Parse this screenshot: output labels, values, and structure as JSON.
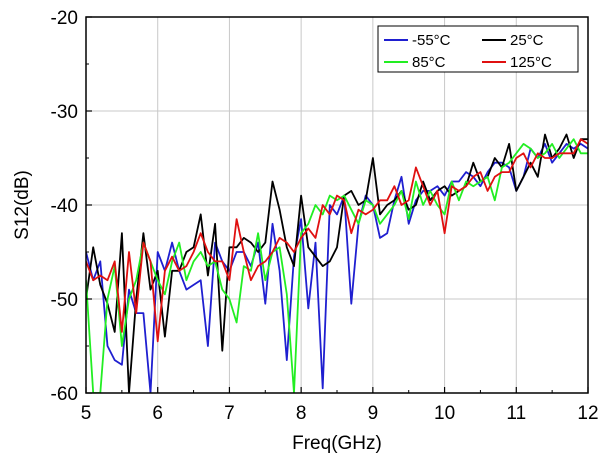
{
  "chart_data": {
    "type": "line",
    "title": "",
    "xlabel": "Freq(GHz)",
    "ylabel": "S12(dB)",
    "xlim": [
      5,
      12
    ],
    "ylim": [
      -60,
      -20
    ],
    "xticks": [
      "5",
      "6",
      "7",
      "8",
      "9",
      "10",
      "11",
      "12"
    ],
    "yticks": [
      "-20",
      "-30",
      "-40",
      "-50",
      "-60"
    ],
    "grid": true,
    "legend_position": "top-right",
    "series": [
      {
        "name": "-55°C",
        "color": "#1f1fd0",
        "x": [
          5,
          5.1,
          5.2,
          5.3,
          5.4,
          5.5,
          5.6,
          5.7,
          5.8,
          5.9,
          6.0,
          6.1,
          6.2,
          6.3,
          6.4,
          6.5,
          6.6,
          6.7,
          6.8,
          6.9,
          7.0,
          7.1,
          7.2,
          7.3,
          7.4,
          7.5,
          7.6,
          7.7,
          7.8,
          7.9,
          8.0,
          8.1,
          8.2,
          8.3,
          8.4,
          8.5,
          8.6,
          8.7,
          8.8,
          8.9,
          9.0,
          9.1,
          9.2,
          9.3,
          9.4,
          9.5,
          9.6,
          9.7,
          9.8,
          9.9,
          10.0,
          10.1,
          10.2,
          10.3,
          10.4,
          10.5,
          10.6,
          10.7,
          10.8,
          10.9,
          11.0,
          11.1,
          11.2,
          11.3,
          11.4,
          11.5,
          11.6,
          11.7,
          11.8,
          11.9,
          12.0
        ],
        "y": [
          -45,
          -48,
          -46,
          -55,
          -56.5,
          -57,
          -49,
          -51.5,
          -51.5,
          -60,
          -45,
          -47,
          -44,
          -47,
          -49,
          -48.5,
          -48,
          -55,
          -44,
          -46,
          -47,
          -45,
          -45,
          -46.5,
          -44,
          -50.5,
          -42,
          -47,
          -56.5,
          -45.5,
          -41.5,
          -51,
          -44,
          -59.5,
          -40,
          -41,
          -39,
          -50.5,
          -42,
          -39,
          -40,
          -43.5,
          -43,
          -39.5,
          -37,
          -42,
          -39.5,
          -38.5,
          -38.5,
          -38,
          -39,
          -37.5,
          -37.5,
          -36.5,
          -37,
          -38,
          -36.5,
          -35.5,
          -35.5,
          -36,
          -38.5,
          -37,
          -34,
          -35,
          -33.5,
          -35.5,
          -34.5,
          -33.5,
          -34,
          -33.5,
          -34
        ]
      },
      {
        "name": "25°C",
        "color": "#000000",
        "x": [
          5,
          5.1,
          5.2,
          5.3,
          5.4,
          5.5,
          5.6,
          5.7,
          5.8,
          5.9,
          6.0,
          6.1,
          6.2,
          6.3,
          6.4,
          6.5,
          6.6,
          6.7,
          6.8,
          6.9,
          7.0,
          7.1,
          7.2,
          7.3,
          7.4,
          7.5,
          7.6,
          7.7,
          7.8,
          7.9,
          8.0,
          8.1,
          8.2,
          8.3,
          8.4,
          8.5,
          8.6,
          8.7,
          8.8,
          8.9,
          9.0,
          9.1,
          9.2,
          9.3,
          9.4,
          9.5,
          9.6,
          9.7,
          9.8,
          9.9,
          10.0,
          10.1,
          10.2,
          10.3,
          10.4,
          10.5,
          10.6,
          10.7,
          10.8,
          10.9,
          11.0,
          11.1,
          11.2,
          11.3,
          11.4,
          11.5,
          11.6,
          11.7,
          11.8,
          11.9,
          12.0
        ],
        "y": [
          -50,
          -44.5,
          -48.5,
          -50.5,
          -53.5,
          -43,
          -60,
          -50,
          -43,
          -49,
          -47,
          -54,
          -47,
          -47,
          -45,
          -44.5,
          -41,
          -47.5,
          -42,
          -55.5,
          -44.5,
          -44.5,
          -43.5,
          -44,
          -45,
          -44,
          -37.5,
          -40.5,
          -44.5,
          -46.5,
          -39,
          -44.5,
          -45.5,
          -46.5,
          -46,
          -44.5,
          -39,
          -38.5,
          -40,
          -39.5,
          -35,
          -41,
          -40,
          -39.5,
          -38.5,
          -40.5,
          -40,
          -37.5,
          -39.5,
          -38.5,
          -38,
          -39,
          -38.5,
          -38,
          -35.5,
          -37.5,
          -37,
          -35,
          -36,
          -33.5,
          -38.5,
          -37,
          -35.5,
          -37,
          -32.5,
          -35,
          -34,
          -32.5,
          -35,
          -33,
          -33
        ]
      },
      {
        "name": "85°C",
        "color": "#22ee22",
        "x": [
          5,
          5.1,
          5.2,
          5.3,
          5.4,
          5.5,
          5.6,
          5.7,
          5.8,
          5.9,
          6.0,
          6.1,
          6.2,
          6.3,
          6.4,
          6.5,
          6.6,
          6.7,
          6.8,
          6.9,
          7.0,
          7.1,
          7.2,
          7.3,
          7.4,
          7.5,
          7.6,
          7.7,
          7.8,
          7.9,
          8.0,
          8.1,
          8.2,
          8.3,
          8.4,
          8.5,
          8.6,
          8.7,
          8.8,
          8.9,
          9.0,
          9.1,
          9.2,
          9.3,
          9.4,
          9.5,
          9.6,
          9.7,
          9.8,
          9.9,
          10.0,
          10.1,
          10.2,
          10.3,
          10.4,
          10.5,
          10.6,
          10.7,
          10.8,
          10.9,
          11.0,
          11.1,
          11.2,
          11.3,
          11.4,
          11.5,
          11.6,
          11.7,
          11.8,
          11.9,
          12.0
        ],
        "y": [
          -48,
          -60,
          -60,
          -50,
          -46.5,
          -55,
          -50,
          -48,
          -44,
          -46,
          -48,
          -49.5,
          -46,
          -44,
          -48,
          -46,
          -45,
          -46.5,
          -46,
          -49,
          -50,
          -52.5,
          -46.5,
          -47,
          -43,
          -48,
          -45,
          -44.5,
          -49.5,
          -60,
          -43,
          -42,
          -40,
          -41,
          -39,
          -39.5,
          -39,
          -40.5,
          -42,
          -39.5,
          -40,
          -42,
          -41,
          -40,
          -38.5,
          -41.5,
          -37.5,
          -40,
          -38.5,
          -40,
          -41,
          -37.5,
          -39.5,
          -37.5,
          -38,
          -37.5,
          -37,
          -39.5,
          -36,
          -35.5,
          -34.5,
          -33.5,
          -34,
          -35,
          -34.5,
          -33.5,
          -35,
          -34,
          -33,
          -34.5,
          -34.5
        ]
      },
      {
        "name": "125°C",
        "color": "#e01010",
        "x": [
          5,
          5.1,
          5.2,
          5.3,
          5.4,
          5.5,
          5.6,
          5.7,
          5.8,
          5.9,
          6.0,
          6.1,
          6.2,
          6.3,
          6.4,
          6.5,
          6.6,
          6.7,
          6.8,
          6.9,
          7.0,
          7.1,
          7.2,
          7.3,
          7.4,
          7.5,
          7.6,
          7.7,
          7.8,
          7.9,
          8.0,
          8.1,
          8.2,
          8.3,
          8.4,
          8.5,
          8.6,
          8.7,
          8.8,
          8.9,
          9.0,
          9.1,
          9.2,
          9.3,
          9.4,
          9.5,
          9.6,
          9.7,
          9.8,
          9.9,
          10.0,
          10.1,
          10.2,
          10.3,
          10.4,
          10.5,
          10.6,
          10.7,
          10.8,
          10.9,
          11.0,
          11.1,
          11.2,
          11.3,
          11.4,
          11.5,
          11.6,
          11.7,
          11.8,
          11.9,
          12.0
        ],
        "y": [
          -46,
          -48,
          -47.5,
          -48,
          -46,
          -53.5,
          -45,
          -51.5,
          -44,
          -46,
          -54.5,
          -47,
          -45.5,
          -47,
          -46.5,
          -45,
          -43,
          -45,
          -46,
          -46,
          -48,
          -41.5,
          -45,
          -48,
          -46.5,
          -46,
          -45,
          -43.5,
          -44,
          -45,
          -43.5,
          -42.5,
          -43.5,
          -40,
          -41,
          -39,
          -39.5,
          -43,
          -40.5,
          -41,
          -40.5,
          -39.5,
          -39.5,
          -38,
          -40,
          -39.5,
          -36,
          -38,
          -40,
          -38.5,
          -43,
          -38,
          -38.5,
          -38,
          -37,
          -36.5,
          -38.5,
          -37,
          -36.5,
          -36.5,
          -35,
          -34.5,
          -36,
          -34.5,
          -35,
          -35,
          -34.5,
          -34.5,
          -34.5,
          -33,
          -33.5
        ]
      }
    ]
  }
}
